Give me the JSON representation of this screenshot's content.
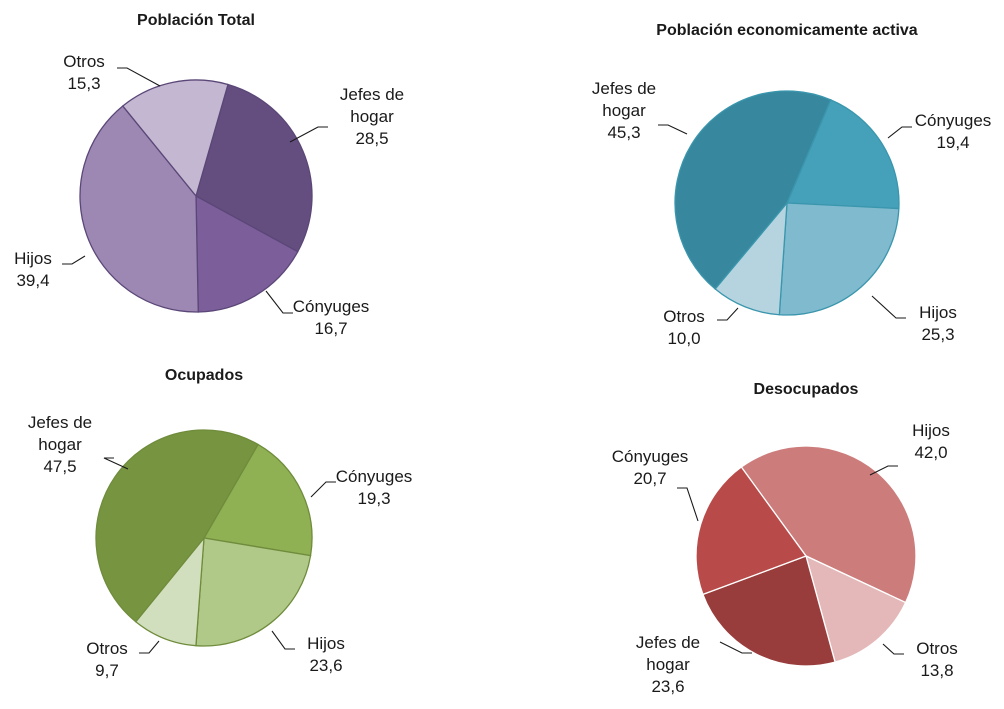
{
  "chart_data": [
    {
      "type": "pie",
      "title": "Población Total",
      "slices": [
        {
          "label": [
            "Jefes de",
            "hogar"
          ],
          "value": 28.5,
          "value_text": "28,5",
          "color": "#644e7f"
        },
        {
          "label": [
            "Cónyuges"
          ],
          "value": 16.7,
          "value_text": "16,7",
          "color": "#7c5e9b"
        },
        {
          "label": [
            "Hijos"
          ],
          "value": 39.4,
          "value_text": "39,4",
          "color": "#9d88b4"
        },
        {
          "label": [
            "Otros"
          ],
          "value": 15.3,
          "value_text": "15,3",
          "color": "#c3b7d2"
        }
      ],
      "border_color": "#5b4777"
    },
    {
      "type": "pie",
      "title": "Población economicamente activa",
      "slices": [
        {
          "label": [
            "Cónyuges"
          ],
          "value": 19.4,
          "value_text": "19,4",
          "color": "#45a1b9"
        },
        {
          "label": [
            "Hijos"
          ],
          "value": 25.3,
          "value_text": "25,3",
          "color": "#7fbace"
        },
        {
          "label": [
            "Otros"
          ],
          "value": 10.0,
          "value_text": "10,0",
          "color": "#b6d4df"
        },
        {
          "label": [
            "Jefes de",
            "hogar"
          ],
          "value": 45.3,
          "value_text": "45,3",
          "color": "#37889e"
        }
      ],
      "border_color": "#3a96ad"
    },
    {
      "type": "pie",
      "title": "Ocupados",
      "slices": [
        {
          "label": [
            "Cónyuges"
          ],
          "value": 19.3,
          "value_text": "19,3",
          "color": "#8fb053"
        },
        {
          "label": [
            "Hijos"
          ],
          "value": 23.6,
          "value_text": "23,6",
          "color": "#b1c988"
        },
        {
          "label": [
            "Otros"
          ],
          "value": 9.7,
          "value_text": "9,7",
          "color": "#d2dfbe"
        },
        {
          "label": [
            "Jefes de",
            "hogar"
          ],
          "value": 47.5,
          "value_text": "47,5",
          "color": "#779441"
        }
      ],
      "border_color": "#6f8c3c"
    },
    {
      "type": "pie",
      "title": "Desocupados",
      "slices": [
        {
          "label": [
            "Hijos"
          ],
          "value": 42.0,
          "value_text": "42,0",
          "color": "#cc7c7b"
        },
        {
          "label": [
            "Otros"
          ],
          "value": 13.8,
          "value_text": "13,8",
          "color": "#e4b8b8"
        },
        {
          "label": [
            "Jefes de",
            "hogar"
          ],
          "value": 23.6,
          "value_text": "23,6",
          "color": "#983d3b"
        },
        {
          "label": [
            "Cónyuges"
          ],
          "value": 20.7,
          "value_text": "20,7",
          "color": "#b84b49"
        }
      ],
      "border_color": "#ffffff"
    }
  ]
}
